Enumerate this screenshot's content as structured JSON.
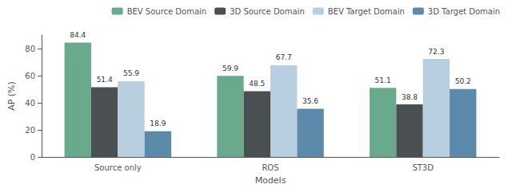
{
  "chart_data": {
    "type": "bar",
    "categories": [
      "Source only",
      "ROS",
      "ST3D"
    ],
    "series": [
      {
        "name": "BEV Source Domain",
        "color": "#6aaa8c",
        "values": [
          84.4,
          59.9,
          51.1
        ]
      },
      {
        "name": "3D Source Domain",
        "color": "#4a4f52",
        "values": [
          51.4,
          48.5,
          38.8
        ]
      },
      {
        "name": "BEV Target Domain",
        "color": "#b8cfe0",
        "values": [
          55.9,
          67.7,
          72.3
        ]
      },
      {
        "name": "3D Target Domain",
        "color": "#5b8aaa",
        "values": [
          18.9,
          35.6,
          50.2
        ]
      }
    ],
    "xlabel": "Models",
    "ylabel": "AP (%)",
    "ylim": [
      0,
      90
    ],
    "yticks": [
      0,
      20,
      40,
      60,
      80
    ],
    "grid": false,
    "legend": "upper right",
    "data_labels": true
  }
}
